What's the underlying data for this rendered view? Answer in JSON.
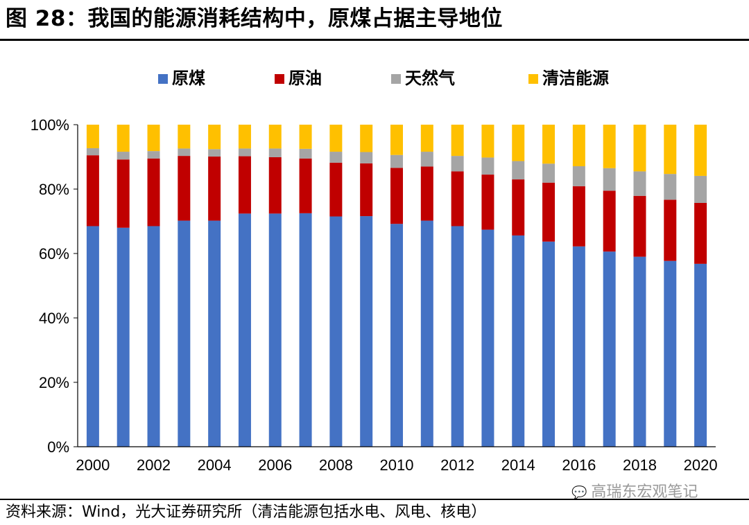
{
  "title": "图 28：我国的能源消耗结构中，原煤占据主导地位",
  "source": "资料来源：Wind，光大证券研究所（清洁能源包括水电、风电、核电）",
  "watermark": {
    "icon": "wechat-icon",
    "text": "高瑞东宏观笔记"
  },
  "colors": {
    "coal": "#4472C4",
    "oil": "#C00000",
    "gas": "#A5A5A5",
    "clean": "#FFC000"
  },
  "chart_data": {
    "type": "bar",
    "stacked": true,
    "categories": [
      "2000",
      "2001",
      "2002",
      "2003",
      "2004",
      "2005",
      "2006",
      "2007",
      "2008",
      "2009",
      "2010",
      "2011",
      "2012",
      "2013",
      "2014",
      "2015",
      "2016",
      "2017",
      "2018",
      "2019",
      "2020"
    ],
    "x_tick_labels": [
      "2000",
      "2002",
      "2004",
      "2006",
      "2008",
      "2010",
      "2012",
      "2014",
      "2016",
      "2018",
      "2020"
    ],
    "y_tick_labels": [
      "0%",
      "20%",
      "40%",
      "60%",
      "80%",
      "100%"
    ],
    "ylim": [
      0,
      100
    ],
    "unit": "%",
    "legend_position": "top",
    "grid": false,
    "series": [
      {
        "name": "原煤",
        "color": "#4472C4",
        "values": [
          68.5,
          68.0,
          68.5,
          70.2,
          70.2,
          72.4,
          72.4,
          72.5,
          71.5,
          71.6,
          69.2,
          70.2,
          68.5,
          67.4,
          65.6,
          63.7,
          62.2,
          60.6,
          59.0,
          57.7,
          56.8
        ]
      },
      {
        "name": "原油",
        "color": "#C00000",
        "values": [
          22.0,
          21.2,
          21.0,
          20.1,
          19.9,
          17.8,
          17.5,
          17.0,
          16.7,
          16.4,
          17.4,
          16.8,
          17.0,
          17.1,
          17.4,
          18.3,
          18.7,
          18.9,
          18.9,
          19.0,
          18.9
        ]
      },
      {
        "name": "天然气",
        "color": "#A5A5A5",
        "values": [
          2.2,
          2.4,
          2.3,
          2.3,
          2.3,
          2.4,
          2.7,
          3.0,
          3.4,
          3.5,
          4.0,
          4.6,
          4.8,
          5.3,
          5.7,
          5.9,
          6.2,
          7.0,
          7.6,
          8.0,
          8.4
        ]
      },
      {
        "name": "清洁能源",
        "color": "#FFC000",
        "values": [
          7.3,
          8.4,
          8.2,
          7.4,
          7.6,
          7.4,
          7.4,
          7.5,
          8.4,
          8.5,
          9.4,
          8.4,
          9.7,
          10.2,
          11.3,
          12.1,
          12.9,
          13.5,
          14.5,
          15.3,
          15.9
        ]
      }
    ]
  }
}
